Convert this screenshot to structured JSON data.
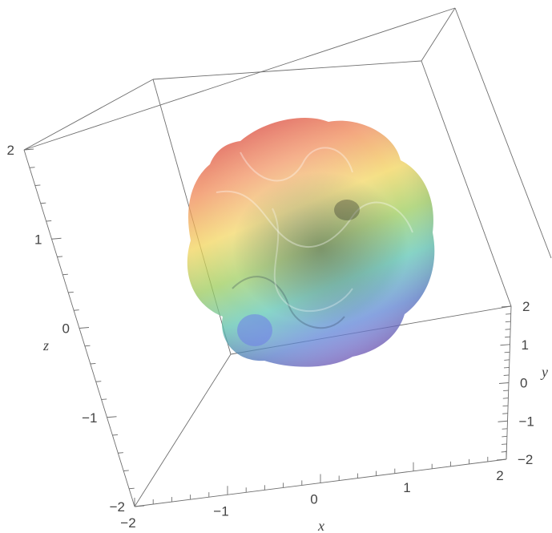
{
  "chart_data": {
    "type": "surface3d",
    "title": "",
    "description_free": true,
    "axes": {
      "x": {
        "label": "x",
        "range": [
          -2,
          2
        ],
        "ticks": [
          "−2",
          "−1",
          "0",
          "1",
          "2"
        ]
      },
      "y": {
        "label": "y",
        "range": [
          -2,
          2
        ],
        "ticks": [
          "−2",
          "−1",
          "0",
          "1",
          "2"
        ]
      },
      "z": {
        "label": "z",
        "range": [
          -2,
          2
        ],
        "ticks": [
          "−2",
          "−1",
          "0",
          "1",
          "2"
        ]
      }
    },
    "box": true,
    "grid": false,
    "legend": "none",
    "surface_colors": [
      "#d9433a",
      "#f08a55",
      "#f2d45a",
      "#9ccc5a",
      "#5cc6b4",
      "#5d83d8",
      "#8d5fd0"
    ],
    "opacity": 0.55
  }
}
